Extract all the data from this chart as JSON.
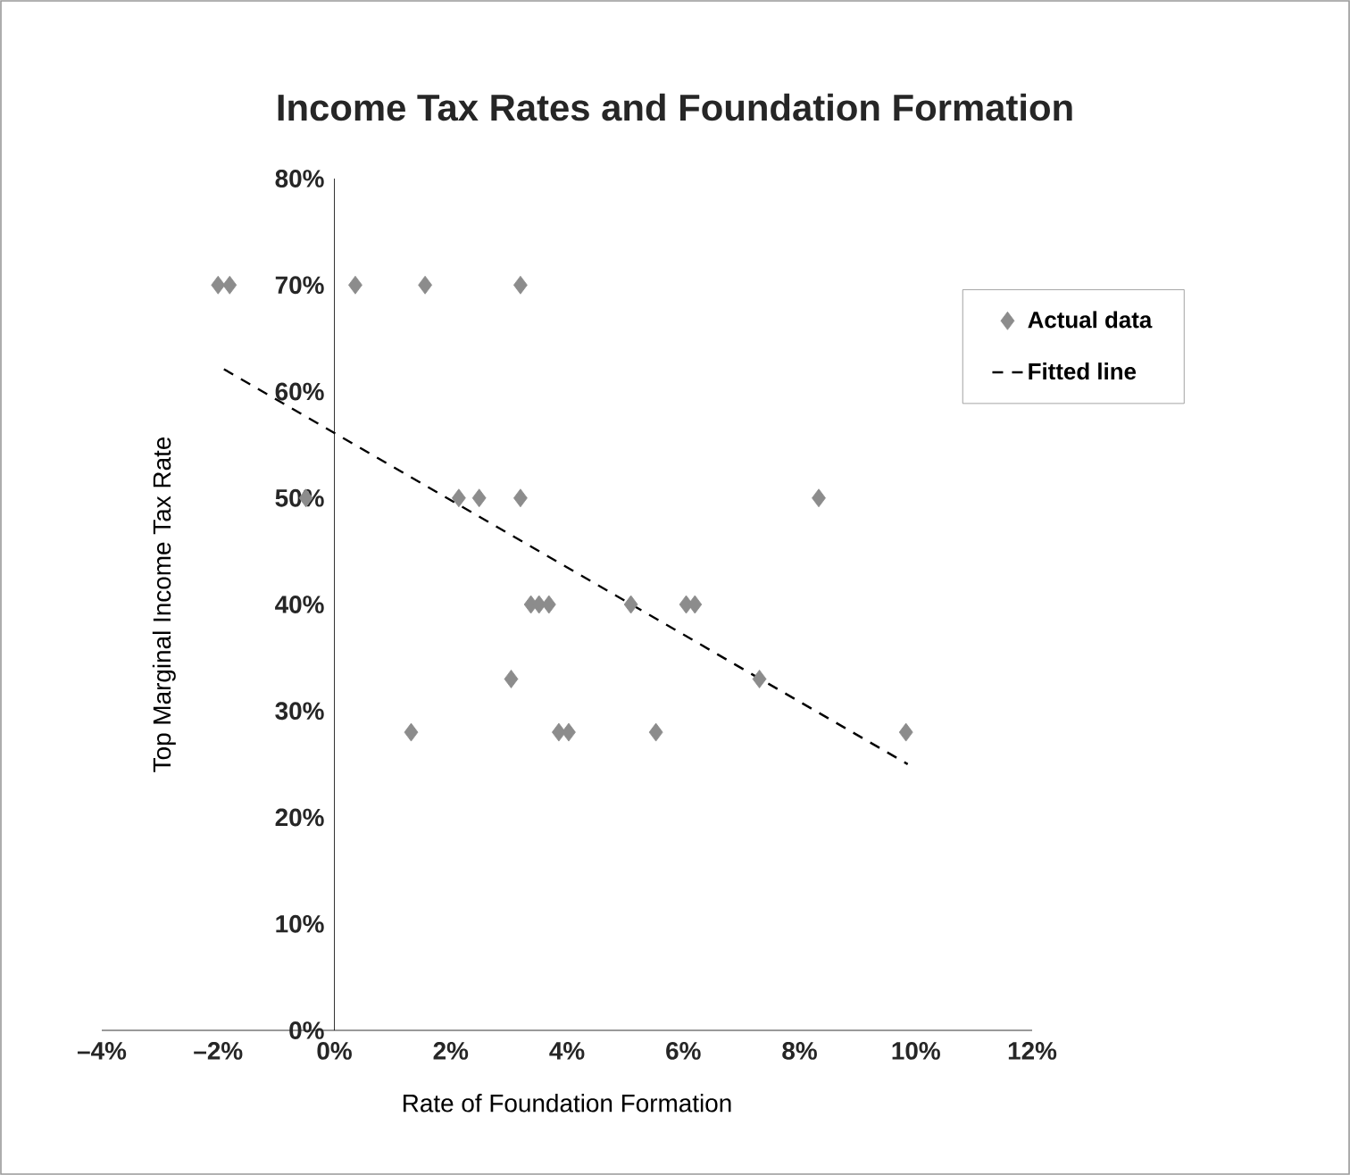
{
  "chart_data": {
    "type": "scatter",
    "title": "Income Tax Rates and Foundation Formation",
    "xlabel": "Rate of Foundation Formation",
    "ylabel": "Top Marginal Income Tax Rate",
    "xlim": [
      -4,
      12
    ],
    "ylim": [
      0,
      80
    ],
    "xticks": [
      {
        "value": -4,
        "label": "–4%"
      },
      {
        "value": -2,
        "label": "–2%"
      },
      {
        "value": 0,
        "label": "0%"
      },
      {
        "value": 2,
        "label": "2%"
      },
      {
        "value": 4,
        "label": "4%"
      },
      {
        "value": 6,
        "label": "6%"
      },
      {
        "value": 8,
        "label": "8%"
      },
      {
        "value": 10,
        "label": "10%"
      },
      {
        "value": 12,
        "label": "12%"
      }
    ],
    "yticks": [
      {
        "value": 0,
        "label": "0%"
      },
      {
        "value": 10,
        "label": "10%"
      },
      {
        "value": 20,
        "label": "20%"
      },
      {
        "value": 30,
        "label": "30%"
      },
      {
        "value": 40,
        "label": "40%"
      },
      {
        "value": 50,
        "label": "50%"
      },
      {
        "value": 60,
        "label": "60%"
      },
      {
        "value": 70,
        "label": "70%"
      },
      {
        "value": 80,
        "label": "80%"
      }
    ],
    "legend": "top right",
    "grid": false,
    "series": [
      {
        "name": "Actual data",
        "color": "#8c8c8c",
        "marker": "diamond",
        "x": [
          -2.0,
          -1.8,
          0.36,
          1.56,
          3.2,
          -0.49,
          2.14,
          2.49,
          3.2,
          8.33,
          3.38,
          3.52,
          3.69,
          5.1,
          6.05,
          6.2,
          3.04,
          7.31,
          1.32,
          3.86,
          4.03,
          5.53,
          9.83
        ],
        "values": [
          70,
          70,
          70,
          70,
          70,
          50,
          50,
          50,
          50,
          50,
          40,
          40,
          40,
          40,
          40,
          40,
          33,
          33,
          28,
          28,
          28,
          28,
          28
        ]
      },
      {
        "name": "Fitted line",
        "type": "line",
        "color": "#000000",
        "marker": "none",
        "line_style": "dashed",
        "x": [
          -1.9,
          9.86
        ],
        "values": [
          62.1,
          25.0
        ]
      }
    ]
  }
}
